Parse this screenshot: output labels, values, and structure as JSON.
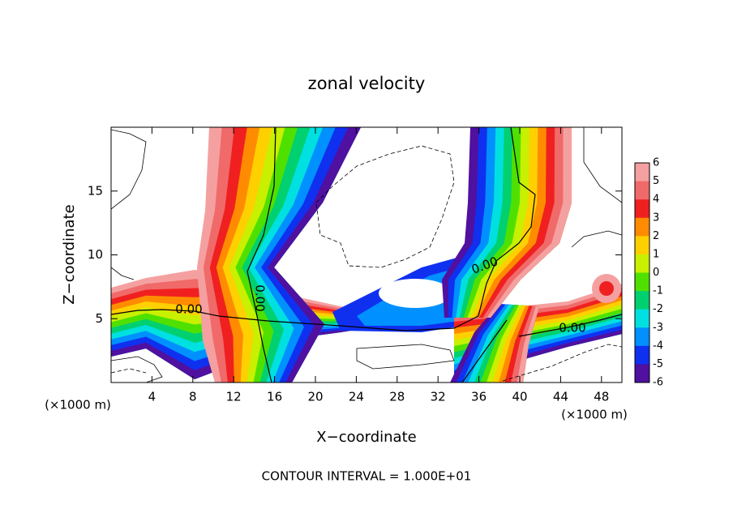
{
  "chart_data": {
    "type": "contour",
    "title": "zonal velocity",
    "x_label": "X−coordinate",
    "y_label": "Z−coordinate",
    "x_unit_labels": [
      "(×1000 m)",
      "(×1000 m)"
    ],
    "footer": "CONTOUR INTERVAL = 1.000E+01",
    "contour_labels": [
      "0.00",
      "0.00",
      "0.00",
      "0.00"
    ],
    "xlim": [
      0,
      50
    ],
    "xticks": [
      4,
      8,
      12,
      16,
      20,
      24,
      28,
      32,
      36,
      40,
      44,
      48
    ],
    "ylim": [
      0,
      20
    ],
    "yticks": [
      5,
      10,
      15
    ],
    "colorbar_levels": [
      6,
      5,
      4,
      3,
      2,
      1,
      0,
      -1,
      -2,
      -3,
      -4,
      -5,
      -6
    ],
    "colors": [
      "#f5a0a0",
      "#f06a6a",
      "#f02020",
      "#ff8c00",
      "#ffd000",
      "#c8f000",
      "#50e000",
      "#00d070",
      "#00e0e0",
      "#0090ff",
      "#1030f0",
      "#5010a0"
    ]
  }
}
